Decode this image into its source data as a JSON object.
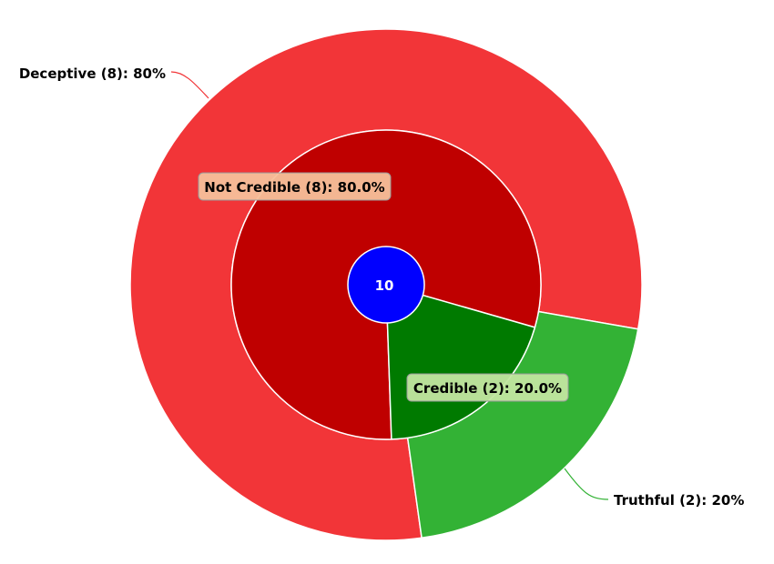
{
  "chart_data": {
    "type": "pie",
    "center": {
      "value": "10",
      "color": "#0000ff"
    },
    "inner_ring": {
      "slices": [
        {
          "label": "Not Credible",
          "count": 8,
          "percent": 80.0,
          "color": "#bf0000",
          "label_bg": "#f5c09a",
          "label_text": "Not Credible (8): 80.0%"
        },
        {
          "label": "Credible",
          "count": 2,
          "percent": 20.0,
          "color": "#007a00",
          "label_bg": "#c2e6a0",
          "label_text": "Credible (2): 20.0%"
        }
      ]
    },
    "outer_ring": {
      "slices": [
        {
          "label": "Deceptive",
          "count": 8,
          "percent": 80,
          "color": "#f23538",
          "connector_color": "#f23538",
          "label_text": "Deceptive (8): 80%"
        },
        {
          "label": "Truthful",
          "count": 2,
          "percent": 20,
          "color": "#33b235",
          "connector_color": "#33b235",
          "label_text": "Truthful (2): 20%"
        }
      ]
    }
  }
}
